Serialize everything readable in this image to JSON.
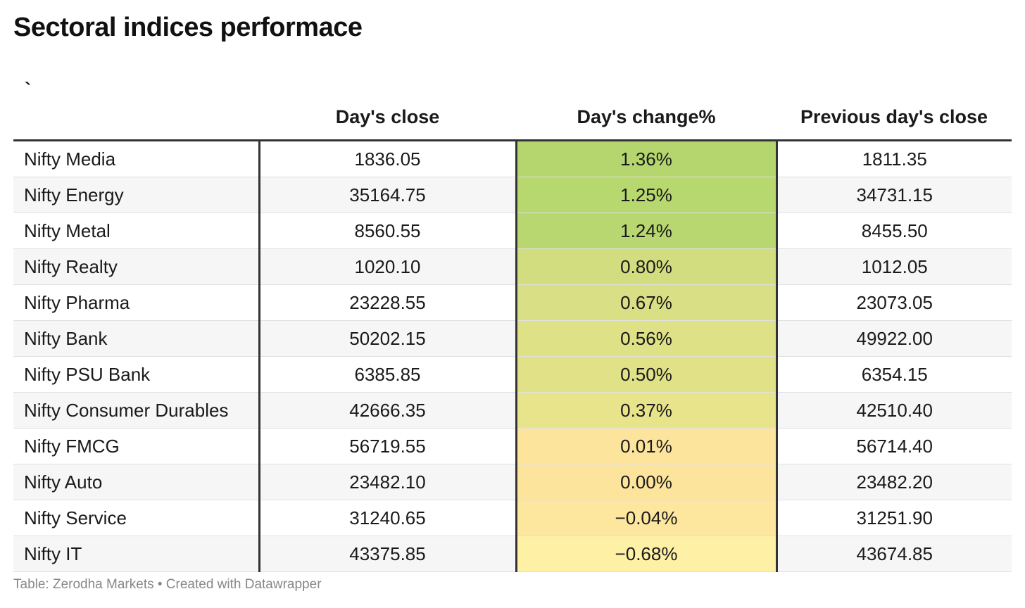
{
  "title": "Sectoral indices performace",
  "footer": "Table: Zerodha Markets • Created with Datawrapper",
  "chart_data": {
    "type": "table",
    "title": "Sectoral indices performace",
    "columns": [
      "`",
      "Day's close",
      "Day's change%",
      "Previous day's close"
    ],
    "rows": [
      {
        "name": "Nifty Media",
        "close": "1836.05",
        "change": "1.36%",
        "prev": "1811.35",
        "color": "#b5d66e"
      },
      {
        "name": "Nifty Energy",
        "close": "35164.75",
        "change": "1.25%",
        "prev": "34731.15",
        "color": "#b7d76f"
      },
      {
        "name": "Nifty Metal",
        "close": "8560.55",
        "change": "1.24%",
        "prev": "8455.50",
        "color": "#b8d770"
      },
      {
        "name": "Nifty Realty",
        "close": "1020.10",
        "change": "0.80%",
        "prev": "1012.05",
        "color": "#d2dd80"
      },
      {
        "name": "Nifty Pharma",
        "close": "23228.55",
        "change": "0.67%",
        "prev": "23073.05",
        "color": "#d9df84"
      },
      {
        "name": "Nifty Bank",
        "close": "50202.15",
        "change": "0.56%",
        "prev": "49922.00",
        "color": "#dee186"
      },
      {
        "name": "Nifty PSU Bank",
        "close": "6385.85",
        "change": "0.50%",
        "prev": "6354.15",
        "color": "#e1e288"
      },
      {
        "name": "Nifty Consumer Durables",
        "close": "42666.35",
        "change": "0.37%",
        "prev": "42510.40",
        "color": "#e8e48c"
      },
      {
        "name": "Nifty FMCG",
        "close": "56719.55",
        "change": "0.01%",
        "prev": "56714.40",
        "color": "#fde49c"
      },
      {
        "name": "Nifty Auto",
        "close": "23482.10",
        "change": "0.00%",
        "prev": "23482.20",
        "color": "#fde49c"
      },
      {
        "name": "Nifty Service",
        "close": "31240.65",
        "change": "−0.04%",
        "prev": "31251.90",
        "color": "#fde69e"
      },
      {
        "name": "Nifty IT",
        "close": "43375.85",
        "change": "−0.68%",
        "prev": "43674.85",
        "color": "#fef0a4"
      }
    ]
  }
}
